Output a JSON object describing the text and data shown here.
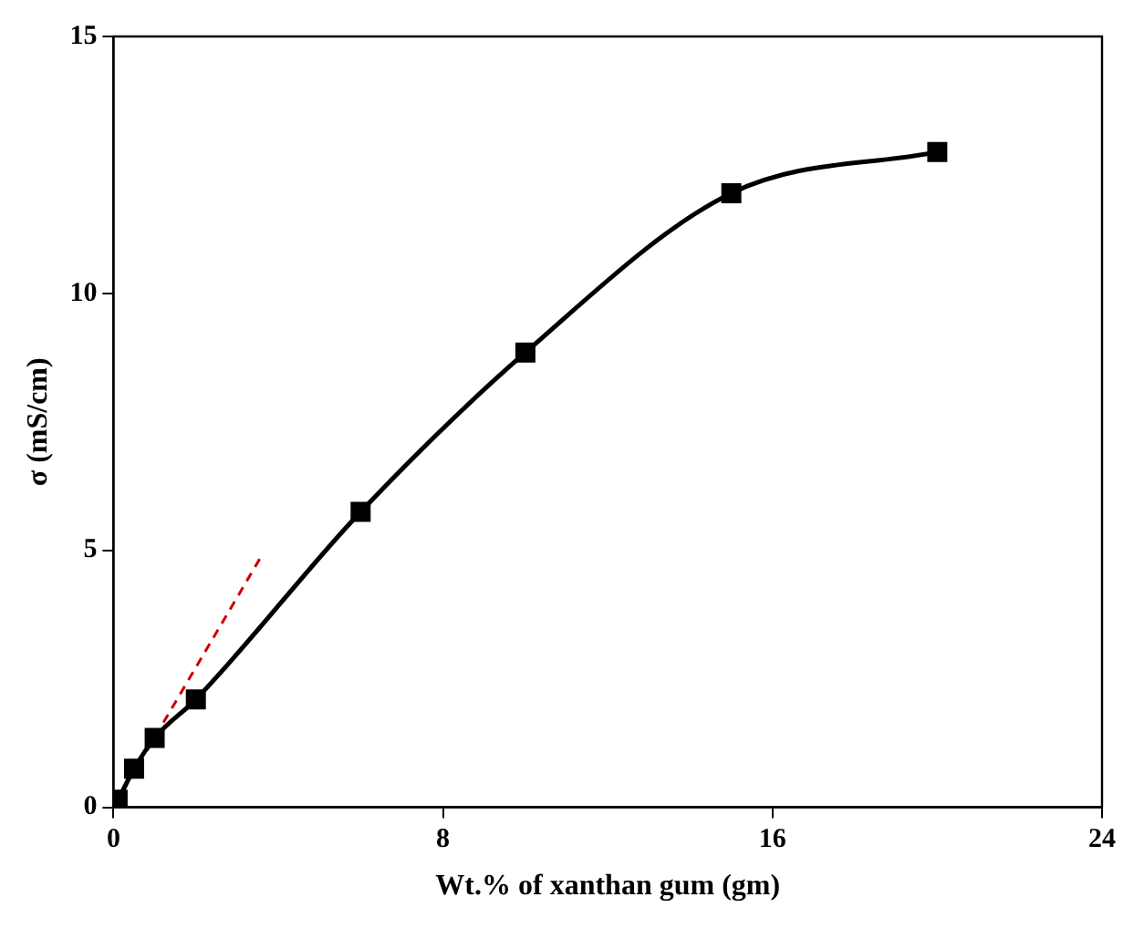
{
  "chart_data": {
    "type": "line",
    "xlabel": "Wt.% of xanthan gum (gm)",
    "ylabel": "σ (mS/cm)",
    "xlim": [
      0,
      24
    ],
    "xticks": [
      0,
      8,
      16,
      24
    ],
    "ylim": [
      0,
      15
    ],
    "yticks": [
      0,
      5,
      10,
      15
    ],
    "grid": false,
    "legend": false,
    "series": [
      {
        "type": "line",
        "color": "#000000",
        "marker": "square",
        "line_style": "solid",
        "x": [
          0,
          0.1,
          0.5,
          1,
          2,
          6,
          10,
          15,
          20
        ],
        "values": [
          0.05,
          0.15,
          0.75,
          1.35,
          2.1,
          5.75,
          8.85,
          11.95,
          12.75
        ]
      },
      {
        "type": "line",
        "color": "#cc0000",
        "marker": "none",
        "line_style": "dashed",
        "x": [
          0,
          3.6
        ],
        "values": [
          0,
          4.9
        ]
      }
    ]
  }
}
